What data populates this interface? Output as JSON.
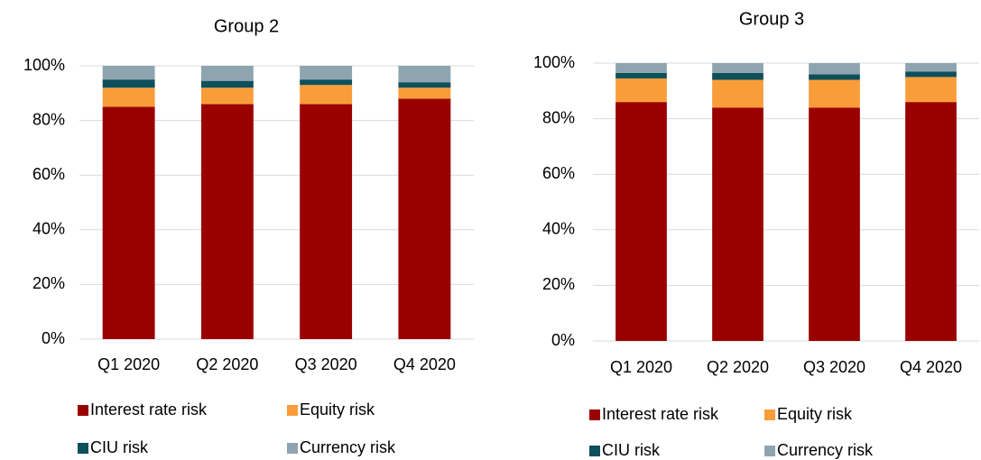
{
  "chart_data": [
    {
      "type": "bar",
      "stacked": true,
      "title": "Group 2",
      "categories": [
        "Q1 2020",
        "Q2 2020",
        "Q3 2020",
        "Q4 2020"
      ],
      "series": [
        {
          "name": "Interest rate risk",
          "color": "#9b0000",
          "values": [
            85,
            86,
            86,
            88
          ]
        },
        {
          "name": "Equity risk",
          "color": "#f99d3a",
          "values": [
            7,
            6,
            7,
            4
          ]
        },
        {
          "name": "CIU risk",
          "color": "#0e4f5c",
          "values": [
            3,
            2.5,
            2,
            2
          ]
        },
        {
          "name": "Currency risk",
          "color": "#8ea5b0",
          "values": [
            5,
            5.5,
            5,
            6
          ]
        }
      ],
      "ylim": [
        0,
        100
      ],
      "yticks": [
        {
          "value": 0,
          "label": "0%"
        },
        {
          "value": 20,
          "label": "20%"
        },
        {
          "value": 40,
          "label": "40%"
        },
        {
          "value": 60,
          "label": "60%"
        },
        {
          "value": 80,
          "label": "80%"
        },
        {
          "value": 100,
          "label": "100%"
        }
      ],
      "grid": true,
      "legend": "bottom"
    },
    {
      "type": "bar",
      "stacked": true,
      "title": "Group 3",
      "categories": [
        "Q1 2020",
        "Q2 2020",
        "Q3 2020",
        "Q4 2020"
      ],
      "series": [
        {
          "name": "Interest rate risk",
          "color": "#9b0000",
          "values": [
            86,
            84,
            84,
            86
          ]
        },
        {
          "name": "Equity risk",
          "color": "#f99d3a",
          "values": [
            8.5,
            10,
            10,
            9
          ]
        },
        {
          "name": "CIU risk",
          "color": "#0e4f5c",
          "values": [
            2,
            2.5,
            2,
            2
          ]
        },
        {
          "name": "Currency risk",
          "color": "#8ea5b0",
          "values": [
            3.5,
            3.5,
            4,
            3
          ]
        }
      ],
      "ylim": [
        0,
        100
      ],
      "yticks": [
        {
          "value": 0,
          "label": "0%"
        },
        {
          "value": 20,
          "label": "20%"
        },
        {
          "value": 40,
          "label": "40%"
        },
        {
          "value": 60,
          "label": "60%"
        },
        {
          "value": 80,
          "label": "80%"
        },
        {
          "value": 100,
          "label": "100%"
        }
      ],
      "grid": true,
      "legend": "bottom"
    }
  ]
}
